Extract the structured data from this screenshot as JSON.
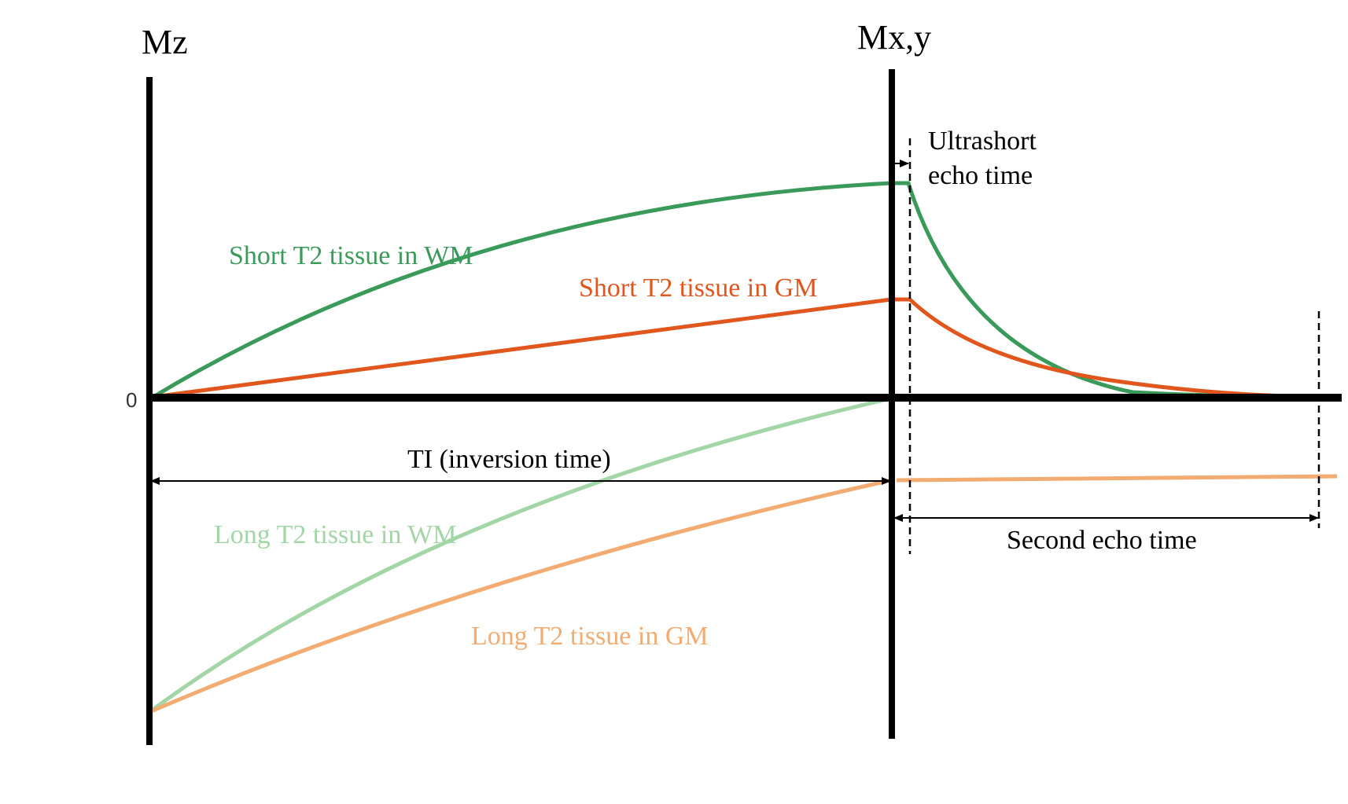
{
  "axes": {
    "left_axis_label": "Mz",
    "right_axis_label": "Mx,y",
    "zero_label": "0"
  },
  "annotations": {
    "ti": "TI (inversion time)",
    "ute_line1": "Ultrashort",
    "ute_line2": "echo time",
    "second_echo": "Second echo time"
  },
  "curves": {
    "short_wm": {
      "label": "Short T2 tissue in WM",
      "color": "#3a9a5a"
    },
    "short_gm": {
      "label": "Short T2 tissue in GM",
      "color": "#e0561c"
    },
    "long_wm": {
      "label": "Long T2 tissue in WM",
      "color": "#a3d6a7"
    },
    "long_gm": {
      "label": "Long T2 tissue in GM",
      "color": "#f2ac72"
    }
  }
}
